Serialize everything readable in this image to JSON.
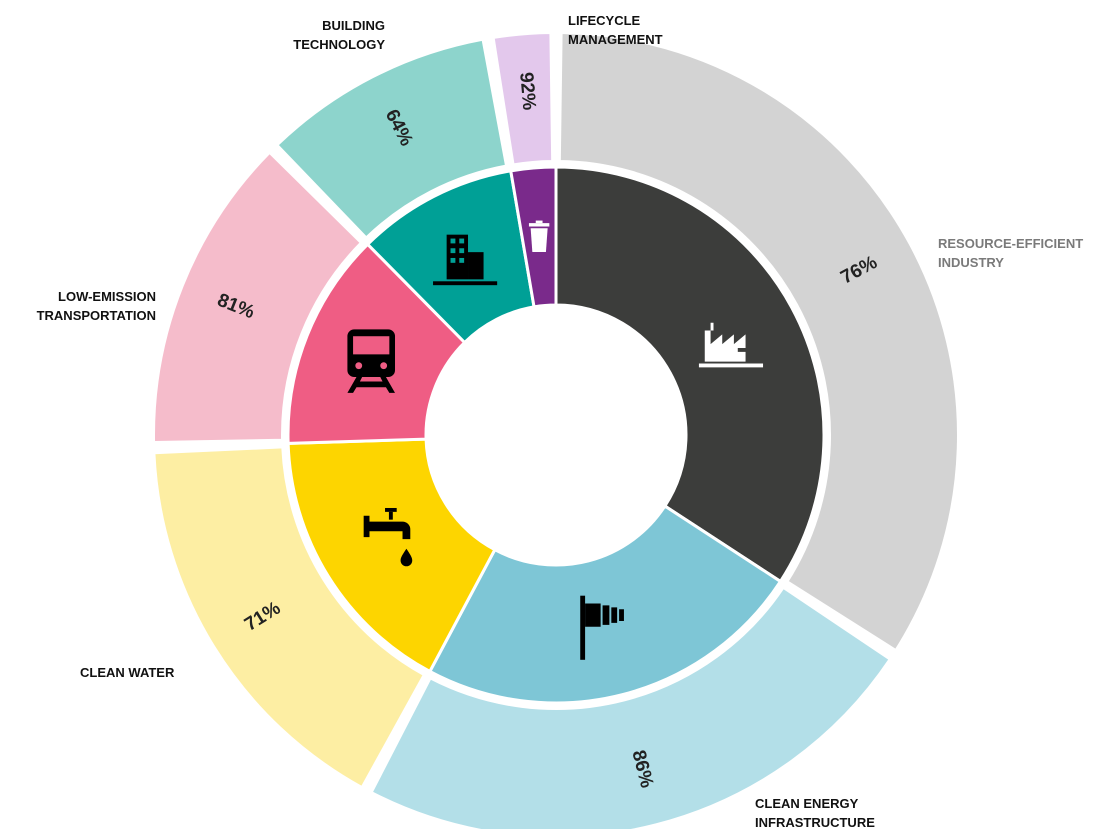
{
  "chart_data": {
    "type": "donut",
    "categories": [
      [
        "RESOURCE-EFFICIENT",
        "INDUSTRY"
      ],
      [
        "CLEAN ENERGY",
        "INFRASTRUCTURE"
      ],
      [
        "CLEAN WATER"
      ],
      [
        "LOW-EMISSION",
        "TRANSPORTATION"
      ],
      [
        "BUILDING",
        "TECHNOLOGY"
      ],
      [
        "LIFECYCLE",
        "MANAGEMENT"
      ]
    ],
    "shares": [
      34.2,
      23.6,
      16.7,
      13.1,
      9.7,
      2.7
    ],
    "values": [
      76,
      86,
      71,
      81,
      64,
      92
    ],
    "value_labels": [
      "76%",
      "86%",
      "71%",
      "81%",
      "64%",
      "92%"
    ],
    "colors": [
      "#3c3d3b",
      "#7ec6d6",
      "#fdd500",
      "#ef5d84",
      "#00a096",
      "#7a2a8b"
    ],
    "outer_colors": [
      "#d3d3d3",
      "#b3dfe8",
      "#fdeea3",
      "#f5bccb",
      "#8dd4cc",
      "#e3c8ec"
    ]
  }
}
